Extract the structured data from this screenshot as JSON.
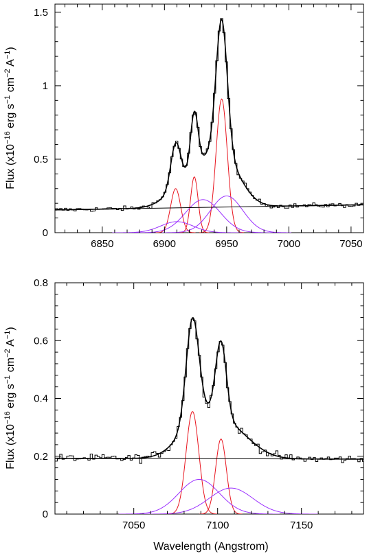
{
  "labels": {
    "ylabel_top": "Flux (x10",
    "ylabel_top_exp1": "−16",
    "ylabel_top_mid": " erg s",
    "ylabel_top_exp2": "−1",
    "ylabel_top_mid2": " cm",
    "ylabel_top_exp3": "−2",
    "ylabel_top_mid3": " A",
    "ylabel_top_exp4": "−1",
    "ylabel_top_end": ")",
    "xlabel_bottom": "Wavelength (Angstrom)"
  },
  "colors": {
    "data": "#000000",
    "fit": "#000000",
    "narrow": "#e8141e",
    "broad": "#9b30ff"
  },
  "chart_data": [
    {
      "type": "line",
      "xlabel": "",
      "ylabel": "Flux (x10−16 erg s−1 cm−2 A−1)",
      "xlim": [
        6812,
        7060
      ],
      "ylim": [
        0,
        1.5555
      ],
      "x_ticks": [
        6850,
        6900,
        6950,
        7000,
        7050
      ],
      "x_tick_labels": [
        "6850",
        "6900",
        "6950",
        "7000",
        "7050"
      ],
      "y_ticks": [
        0,
        0.5,
        1,
        1.5
      ],
      "y_tick_labels": [
        "0",
        "0.5",
        "1",
        "1.5"
      ],
      "continuum": {
        "x": [
          6812,
          7060
        ],
        "y": [
          0.155,
          0.19
        ]
      },
      "components": [
        {
          "kind": "narrow",
          "center": 6909,
          "amplitude": 0.3,
          "sigma": 4.0
        },
        {
          "kind": "narrow",
          "center": 6924,
          "amplitude": 0.38,
          "sigma": 3.0
        },
        {
          "kind": "narrow",
          "center": 6946,
          "amplitude": 0.91,
          "sigma": 4.5
        },
        {
          "kind": "broad",
          "center": 6910,
          "amplitude": 0.075,
          "sigma": 13
        },
        {
          "kind": "broad",
          "center": 6931,
          "amplitude": 0.225,
          "sigma": 14
        },
        {
          "kind": "broad",
          "center": 6950,
          "amplitude": 0.25,
          "sigma": 13
        }
      ],
      "data_range": [
        6812,
        7060
      ],
      "data_step": 1.9,
      "noise": 0.016
    },
    {
      "type": "line",
      "xlabel": "Wavelength (Angstrom)",
      "ylabel": "Flux (x10−16 erg s−1 cm−2 A−1)",
      "xlim": [
        7003,
        7187
      ],
      "ylim": [
        0,
        0.8
      ],
      "x_ticks": [
        7050,
        7100,
        7150
      ],
      "x_tick_labels": [
        "7050",
        "7100",
        "7150"
      ],
      "y_ticks": [
        0,
        0.2,
        0.4,
        0.6,
        0.8
      ],
      "y_tick_labels": [
        "0",
        "0.2",
        "0.4",
        "0.6",
        "0.8"
      ],
      "continuum": {
        "x": [
          7003,
          7187
        ],
        "y": [
          0.193,
          0.19
        ]
      },
      "components": [
        {
          "kind": "narrow",
          "center": 7085,
          "amplitude": 0.355,
          "sigma": 3.8
        },
        {
          "kind": "narrow",
          "center": 7102,
          "amplitude": 0.26,
          "sigma": 3.2
        },
        {
          "kind": "broad",
          "center": 7089,
          "amplitude": 0.12,
          "sigma": 12
        },
        {
          "kind": "broad",
          "center": 7108,
          "amplitude": 0.09,
          "sigma": 13
        }
      ],
      "data_range": [
        7003,
        7187
      ],
      "data_step": 1.4,
      "noise": 0.014
    }
  ]
}
